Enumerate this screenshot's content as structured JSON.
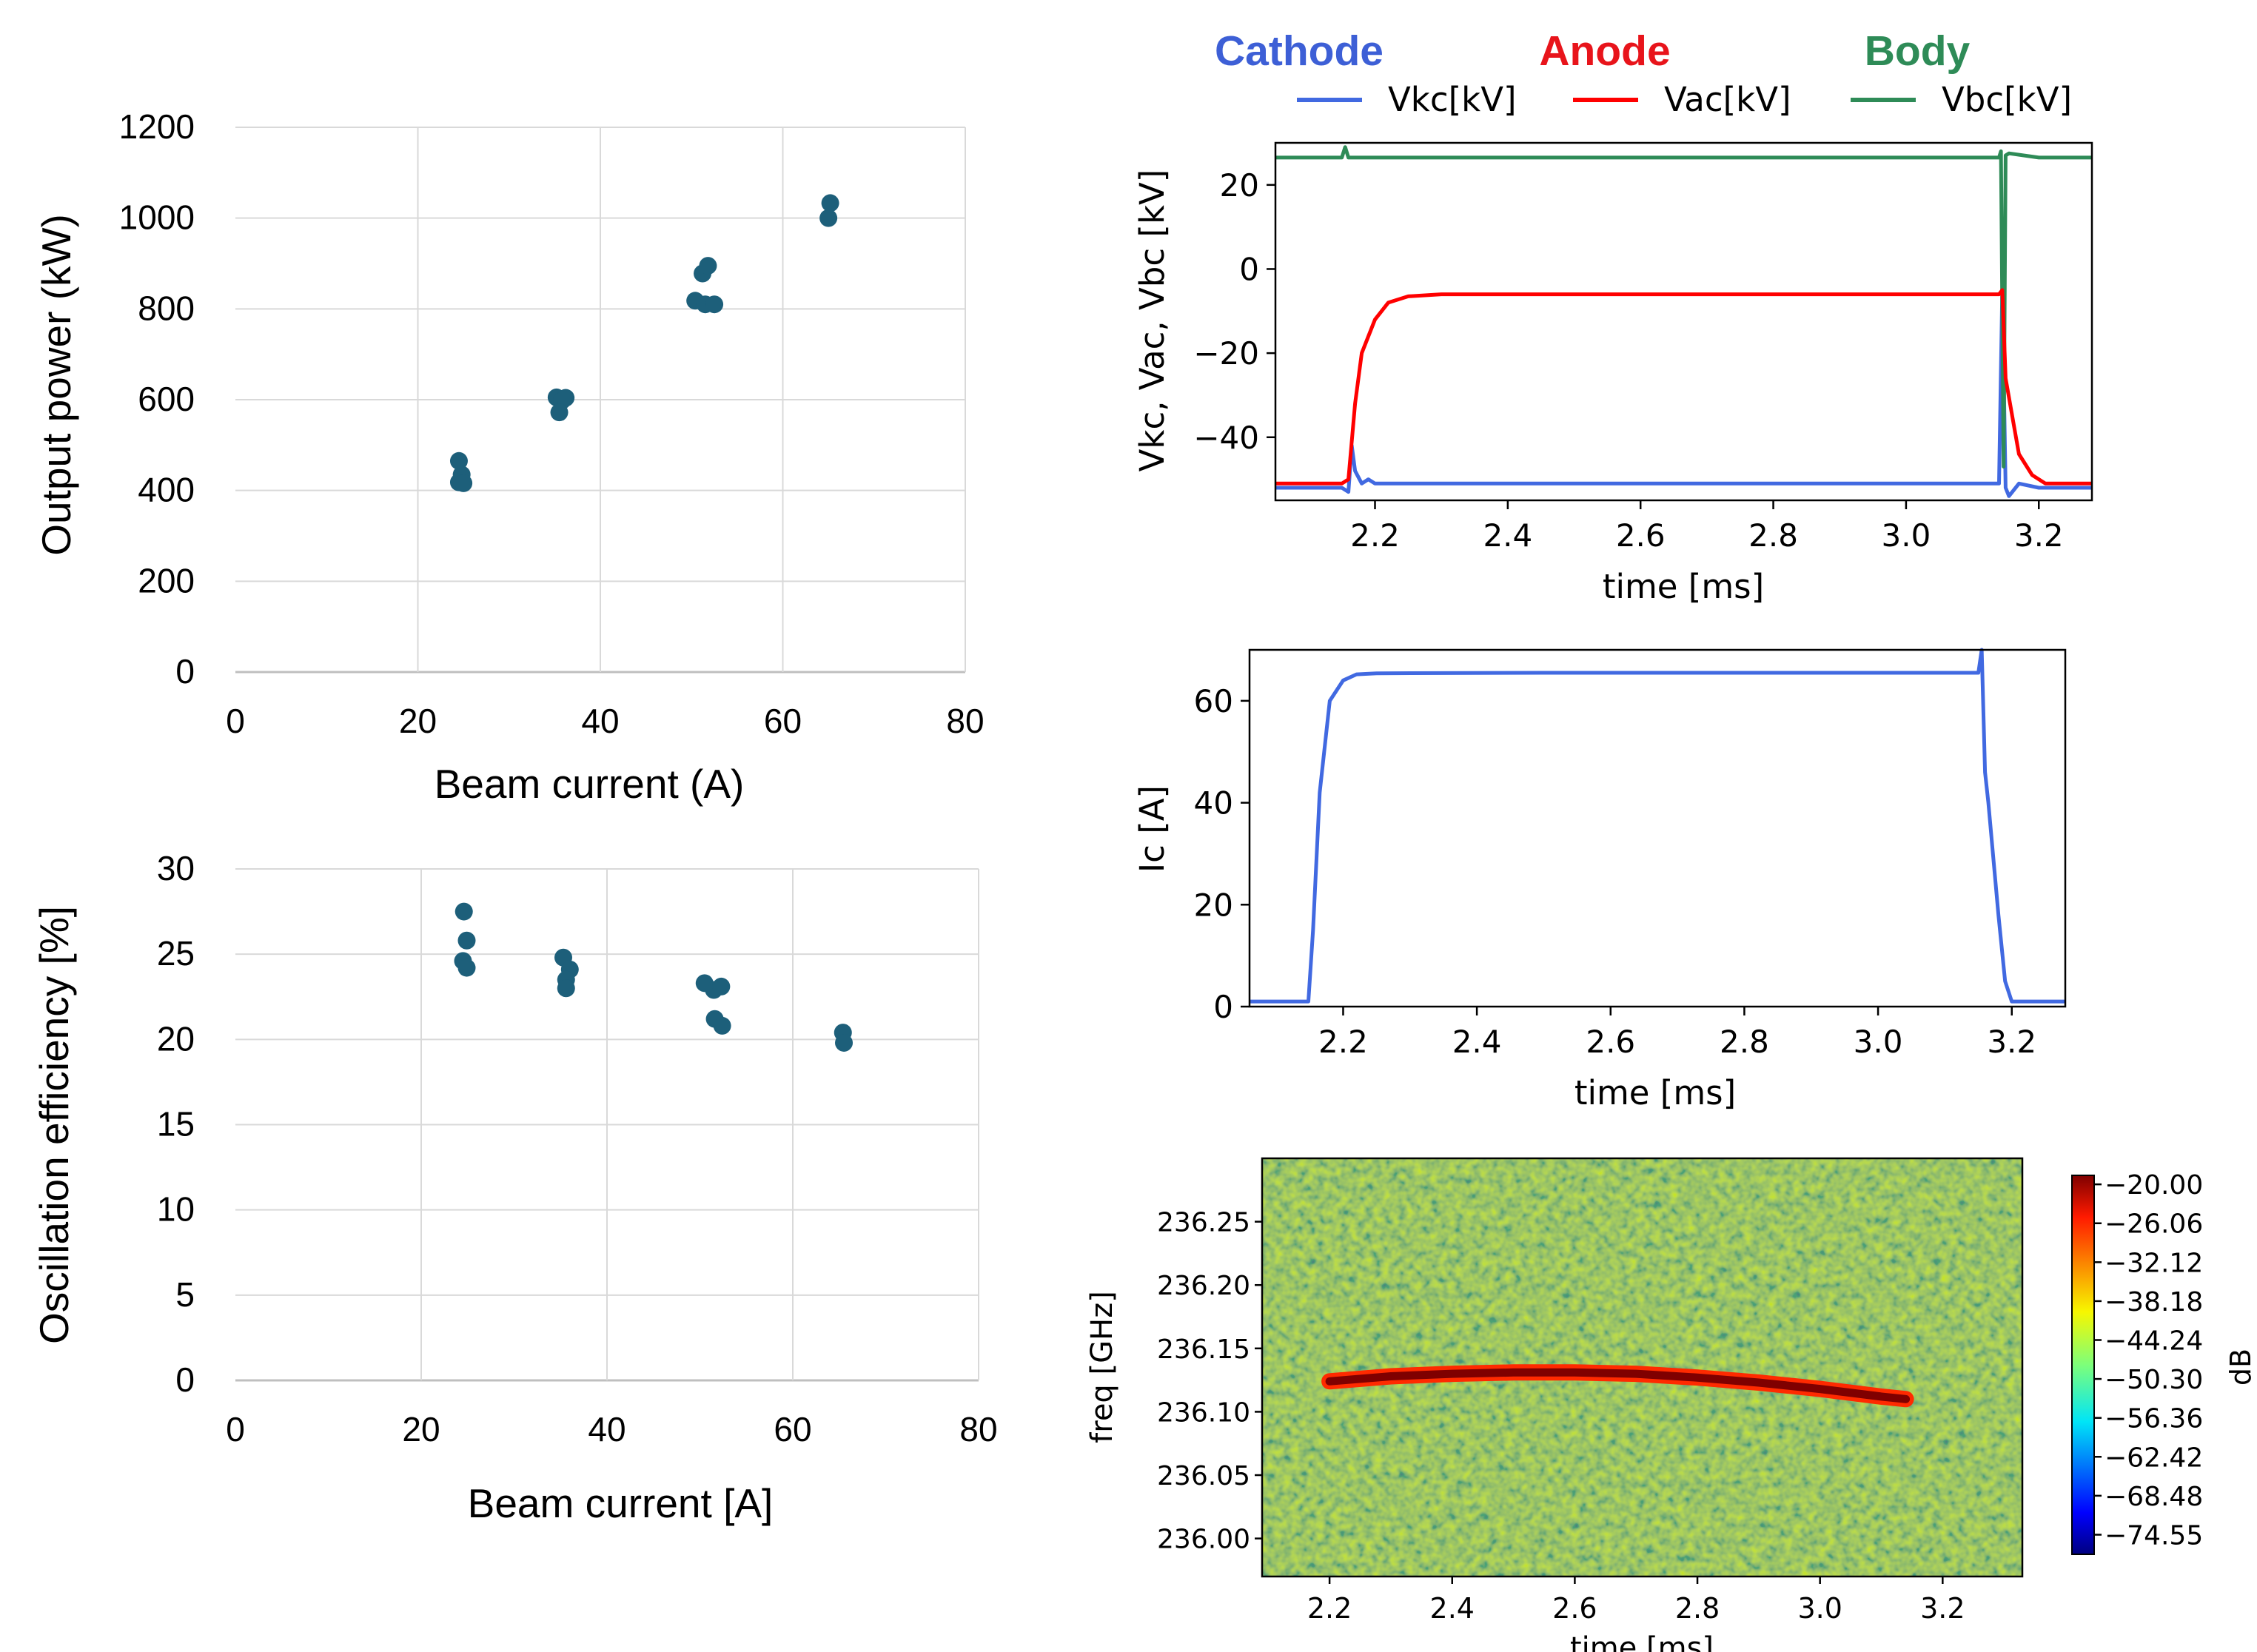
{
  "chart_data": [
    {
      "id": "power",
      "type": "scatter",
      "xlabel": "Beam current (A)",
      "ylabel": "Output power (kW)",
      "xlim": [
        0,
        80
      ],
      "ylim": [
        0,
        1200
      ],
      "xticks": [
        "0",
        "20",
        "40",
        "60",
        "80"
      ],
      "yticks": [
        "0",
        "200",
        "400",
        "600",
        "800",
        "1000",
        "1200"
      ],
      "grid": true,
      "marker_color": "#1d5f7a",
      "points": [
        [
          24.5,
          465
        ],
        [
          24.8,
          435
        ],
        [
          24.5,
          418
        ],
        [
          25.0,
          416
        ],
        [
          35.2,
          605
        ],
        [
          35.8,
          598
        ],
        [
          36.2,
          604
        ],
        [
          35.5,
          572
        ],
        [
          50.4,
          818
        ],
        [
          51.2,
          878
        ],
        [
          51.8,
          895
        ],
        [
          51.5,
          810
        ],
        [
          52.5,
          810
        ],
        [
          65.2,
          1033
        ],
        [
          65.0,
          1000
        ]
      ]
    },
    {
      "id": "efficiency",
      "type": "scatter",
      "xlabel": "Beam current [A]",
      "ylabel": "Oscillation efficiency [%]",
      "xlim": [
        0,
        80
      ],
      "ylim": [
        0,
        30
      ],
      "xticks": [
        "0",
        "20",
        "40",
        "60",
        "80"
      ],
      "yticks": [
        "0",
        "5",
        "10",
        "15",
        "20",
        "25",
        "30"
      ],
      "grid": true,
      "marker_color": "#1d5f7a",
      "points": [
        [
          24.6,
          27.5
        ],
        [
          24.9,
          25.8
        ],
        [
          24.5,
          24.6
        ],
        [
          24.9,
          24.2
        ],
        [
          35.3,
          24.8
        ],
        [
          36.0,
          24.1
        ],
        [
          35.6,
          23.5
        ],
        [
          35.6,
          23.0
        ],
        [
          50.5,
          23.3
        ],
        [
          51.5,
          22.9
        ],
        [
          52.3,
          23.1
        ],
        [
          51.6,
          21.2
        ],
        [
          52.4,
          20.8
        ],
        [
          65.4,
          20.4
        ],
        [
          65.5,
          19.8
        ]
      ]
    },
    {
      "id": "voltages",
      "type": "line",
      "header_labels": [
        {
          "text": "Cathode",
          "color": "#3d5fd6"
        },
        {
          "text": "Anode",
          "color": "#e8141b"
        },
        {
          "text": "Body",
          "color": "#2e8b57"
        }
      ],
      "xlabel": "time [ms]",
      "ylabel": "Vkc, Vac, Vbc [kV]",
      "xlim": [
        2.05,
        3.28
      ],
      "ylim": [
        -55,
        30
      ],
      "xticks": [
        "2.2",
        "2.4",
        "2.6",
        "2.8",
        "3.0",
        "3.2"
      ],
      "yticks": [
        "20",
        "0",
        "−20",
        "−40"
      ],
      "grid": false,
      "series": [
        {
          "name": "Vkc[kV]",
          "color": "#4169e1",
          "x": [
            2.05,
            2.15,
            2.16,
            2.165,
            2.17,
            2.18,
            2.19,
            2.2,
            2.3,
            2.5,
            2.7,
            2.9,
            3.1,
            3.14,
            3.145,
            3.15,
            3.155,
            3.17,
            3.2,
            3.28
          ],
          "y": [
            -52,
            -52,
            -53,
            -42,
            -48,
            -51,
            -50,
            -51,
            -51,
            -51,
            -51,
            -51,
            -51,
            -51,
            -5,
            -52,
            -54,
            -51,
            -52,
            -52
          ]
        },
        {
          "name": "Vac[kV]",
          "color": "#ff0000",
          "x": [
            2.05,
            2.15,
            2.16,
            2.17,
            2.18,
            2.2,
            2.22,
            2.25,
            2.3,
            2.5,
            2.8,
            3.0,
            3.14,
            3.145,
            3.15,
            3.16,
            3.17,
            3.19,
            3.21,
            3.28
          ],
          "y": [
            -51,
            -51,
            -50,
            -32,
            -20,
            -12,
            -8,
            -6.5,
            -6,
            -6,
            -6,
            -6,
            -6,
            -5,
            -26,
            -35,
            -44,
            -49,
            -51,
            -51
          ]
        },
        {
          "name": "Vbc[kV]",
          "color": "#2e8b57",
          "x": [
            2.05,
            2.15,
            2.155,
            2.16,
            3.14,
            3.143,
            3.147,
            3.15,
            3.155,
            3.2,
            3.28
          ],
          "y": [
            26.5,
            26.5,
            29,
            26.5,
            26.5,
            28,
            -47,
            27,
            27.5,
            26.5,
            26.5
          ]
        }
      ]
    },
    {
      "id": "current",
      "type": "line",
      "xlabel": "time [ms]",
      "ylabel": "Ic [A]",
      "xlim": [
        2.06,
        3.28
      ],
      "ylim": [
        0,
        70
      ],
      "xticks": [
        "2.2",
        "2.4",
        "2.6",
        "2.8",
        "3.0",
        "3.2"
      ],
      "yticks": [
        "0",
        "20",
        "40",
        "60"
      ],
      "grid": false,
      "series": [
        {
          "name": "Ic",
          "color": "#4169e1",
          "x": [
            2.06,
            2.148,
            2.155,
            2.165,
            2.18,
            2.2,
            2.22,
            2.25,
            2.5,
            2.8,
            3.0,
            3.15,
            3.155,
            3.16,
            3.165,
            3.18,
            3.19,
            3.2,
            3.22,
            3.28
          ],
          "y": [
            1,
            1,
            15,
            42,
            60,
            64,
            65.2,
            65.4,
            65.5,
            65.5,
            65.5,
            65.5,
            70,
            46,
            40,
            18,
            5,
            1,
            1,
            1
          ]
        }
      ]
    },
    {
      "id": "spectrogram",
      "type": "heatmap",
      "xlabel": "time [ms]",
      "ylabel": "freq [GHz]",
      "xlim": [
        2.09,
        3.33
      ],
      "ylim": [
        235.97,
        236.3
      ],
      "xticks": [
        "2.2",
        "2.4",
        "2.6",
        "2.8",
        "3.0",
        "3.2"
      ],
      "yticks": [
        "236.25",
        "236.20",
        "236.15",
        "236.10",
        "236.05",
        "236.00"
      ],
      "colorbar_label": "dB",
      "colorbar_ticks": [
        "−20.00",
        "−26.06",
        "−32.12",
        "−38.18",
        "−44.24",
        "−50.30",
        "−56.36",
        "−62.42",
        "−68.48",
        "−74.55"
      ],
      "clim": [
        -77.6,
        -18.6
      ],
      "background_level": -48,
      "signal_level": -20,
      "signal_trace": {
        "x": [
          2.2,
          2.3,
          2.4,
          2.5,
          2.6,
          2.7,
          2.8,
          2.9,
          3.0,
          3.1,
          3.14
        ],
        "y": [
          236.124,
          236.128,
          236.13,
          236.131,
          236.131,
          236.13,
          236.127,
          236.123,
          236.118,
          236.112,
          236.11
        ]
      }
    }
  ]
}
